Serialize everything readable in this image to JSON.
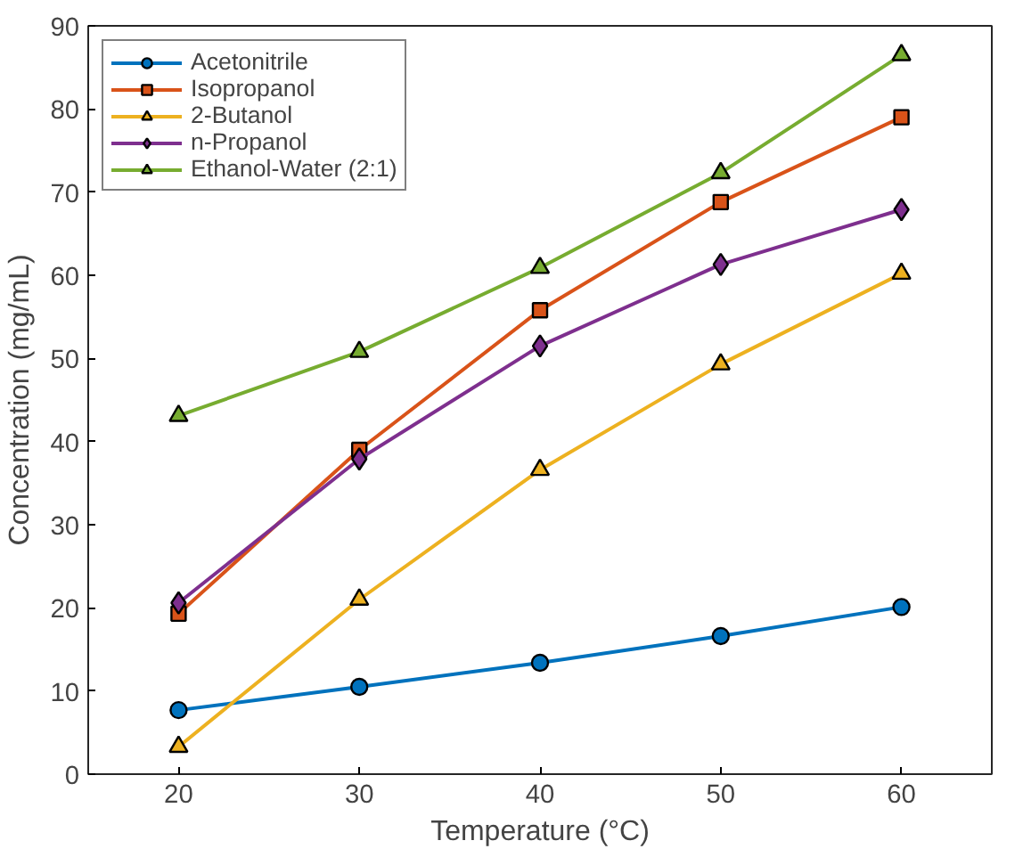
{
  "chart_data": {
    "type": "line",
    "xlabel": "Temperature (°C)",
    "ylabel": "Concentration (mg/mL)",
    "x": [
      20,
      30,
      40,
      50,
      60
    ],
    "xlim": [
      15,
      65
    ],
    "xticks": [
      20,
      30,
      40,
      50,
      60
    ],
    "ylim": [
      0,
      90
    ],
    "yticks": [
      0,
      10,
      20,
      30,
      40,
      50,
      60,
      70,
      80,
      90
    ],
    "grid": false,
    "legend": "top left",
    "line_style": "solid",
    "series": [
      {
        "name": "Acetonitrile",
        "color": "#0072bd",
        "marker": "circle",
        "values": [
          7.7,
          10.5,
          13.4,
          16.6,
          20.1
        ]
      },
      {
        "name": "Isopropanol",
        "color": "#d95319",
        "marker": "square",
        "values": [
          19.3,
          39.0,
          55.8,
          68.8,
          79.0
        ]
      },
      {
        "name": "2-Butanol",
        "color": "#edb120",
        "marker": "triangle",
        "values": [
          3.3,
          21.0,
          36.6,
          49.3,
          60.2
        ]
      },
      {
        "name": "n-Propanol",
        "color": "#7e2f8e",
        "marker": "diamond",
        "values": [
          20.6,
          37.9,
          51.5,
          61.3,
          67.9
        ]
      },
      {
        "name": "Ethanol-Water (2:1)",
        "color": "#77ac30",
        "marker": "triangle",
        "values": [
          43.1,
          50.8,
          60.9,
          72.3,
          86.5
        ]
      }
    ]
  }
}
